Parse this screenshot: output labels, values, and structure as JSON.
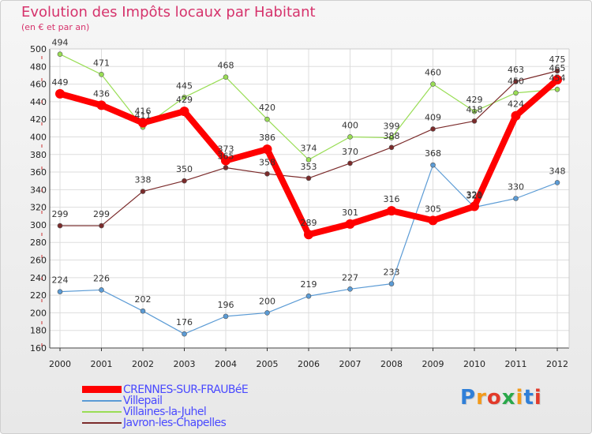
{
  "title": "Evolution des Impôts locaux par Habitant",
  "subtitle": "(en € et par an)",
  "brand": {
    "letters": [
      "P",
      "r",
      "o",
      "x",
      "i",
      "t",
      "i"
    ],
    "colors": [
      "#2f7fd8",
      "#f39a1a",
      "#e23a2a",
      "#2aa84a",
      "#f39a1a",
      "#2f7fd8",
      "#e23a2a"
    ]
  },
  "chart_data": {
    "type": "line",
    "title": "Evolution des Impôts locaux par Habitant",
    "ylabel": "(en € et par an)",
    "xlabel": "",
    "ylim": [
      160,
      500
    ],
    "y_ticks": [
      160,
      180,
      200,
      220,
      240,
      260,
      280,
      300,
      320,
      340,
      360,
      380,
      400,
      420,
      440,
      460,
      480,
      500
    ],
    "x": [
      "2000",
      "2001",
      "2002",
      "2003",
      "2004",
      "2005",
      "2006",
      "2007",
      "2008",
      "2009",
      "2010",
      "2011",
      "2012"
    ],
    "grid": true,
    "series": [
      {
        "name": "CRENNES-SUR-FRAUBéE",
        "color": "#ff0000",
        "values": [
          449,
          436,
          416,
          429,
          373,
          386,
          289,
          301,
          316,
          305,
          321,
          424,
          465
        ]
      },
      {
        "name": "Villepail",
        "color": "#5b9bd5",
        "values": [
          224,
          226,
          202,
          176,
          196,
          200,
          219,
          227,
          233,
          368,
          320,
          330,
          348
        ]
      },
      {
        "name": "Villaines-la-Juhel",
        "color": "#99dd55",
        "values": [
          494,
          471,
          411,
          445,
          468,
          420,
          374,
          400,
          399,
          460,
          429,
          450,
          454
        ]
      },
      {
        "name": "Javron-les-Chapelles",
        "color": "#7b2b2b",
        "values": [
          299,
          299,
          338,
          350,
          365,
          358,
          353,
          370,
          388,
          409,
          418,
          463,
          475
        ]
      }
    ]
  }
}
